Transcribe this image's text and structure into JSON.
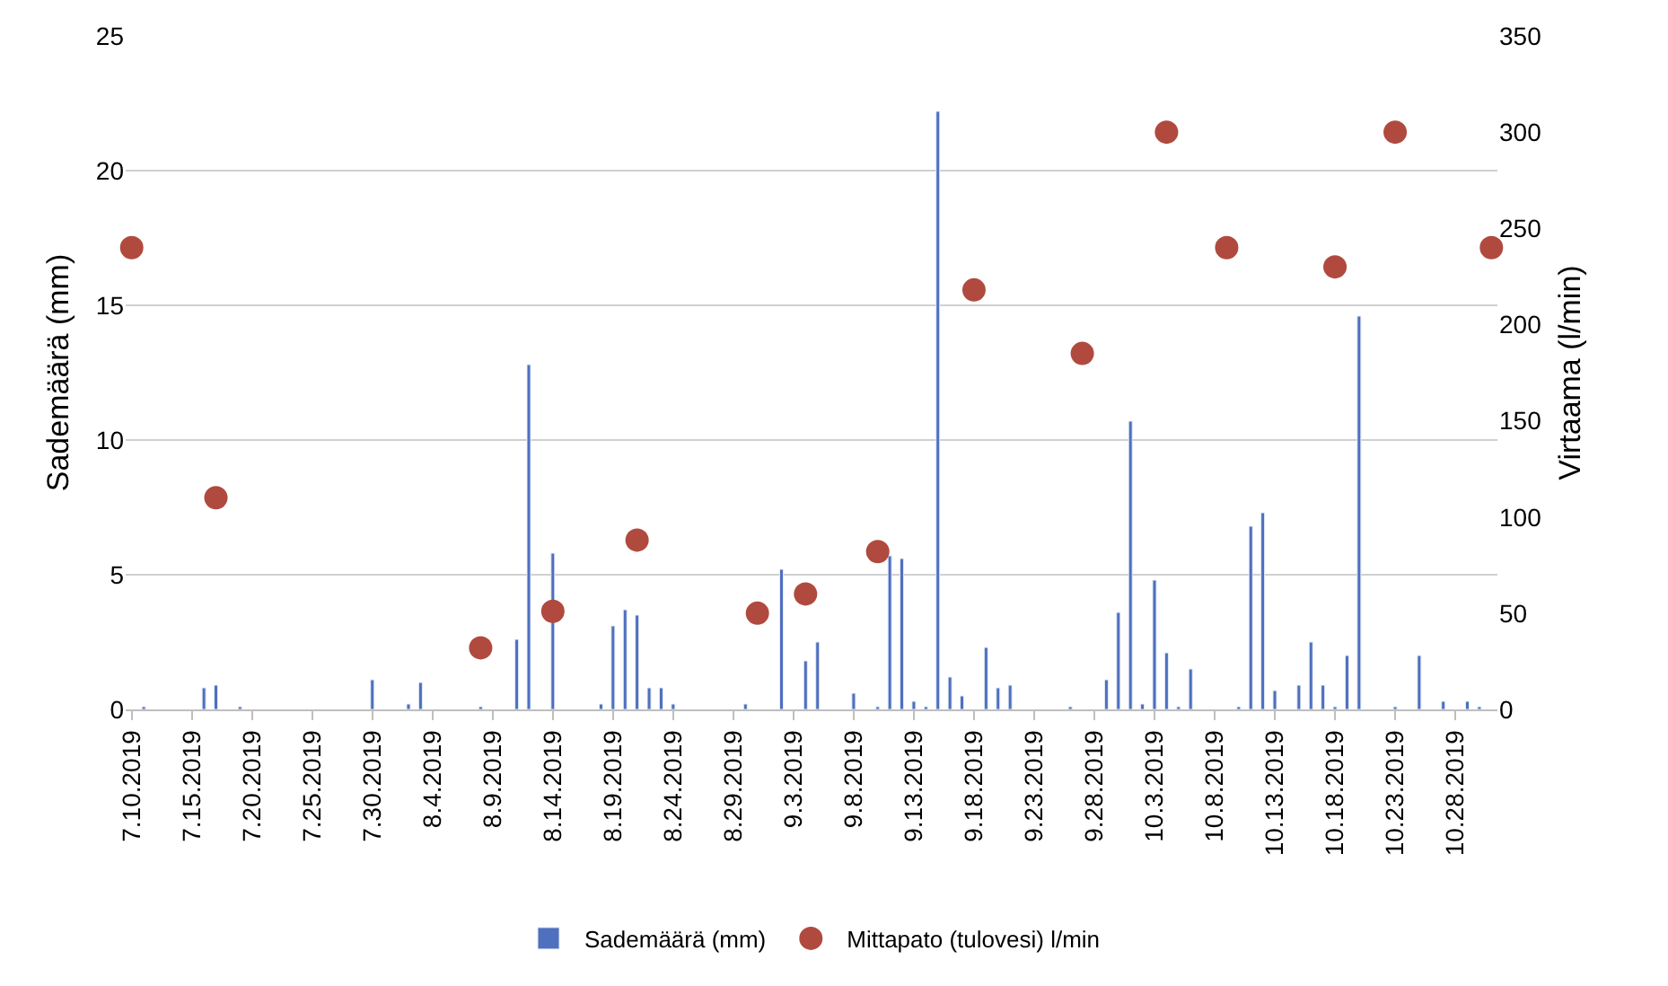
{
  "chart_data": {
    "type": "bar",
    "series": [
      {
        "name": "Sademäärä (mm)",
        "color": "#4f6fbf",
        "x": [
          "2019-07-11",
          "2019-07-16",
          "2019-07-17",
          "2019-07-19",
          "2019-07-30",
          "2019-08-02",
          "2019-08-03",
          "2019-08-08",
          "2019-08-11",
          "2019-08-12",
          "2019-08-14",
          "2019-08-18",
          "2019-08-19",
          "2019-08-20",
          "2019-08-21",
          "2019-08-22",
          "2019-08-23",
          "2019-08-24",
          "2019-08-30",
          "2019-09-02",
          "2019-09-04",
          "2019-09-05",
          "2019-09-08",
          "2019-09-10",
          "2019-09-11",
          "2019-09-12",
          "2019-09-13",
          "2019-09-14",
          "2019-09-15",
          "2019-09-16",
          "2019-09-17",
          "2019-09-19",
          "2019-09-20",
          "2019-09-21",
          "2019-09-26",
          "2019-09-29",
          "2019-09-30",
          "2019-10-01",
          "2019-10-02",
          "2019-10-03",
          "2019-10-04",
          "2019-10-05",
          "2019-10-06",
          "2019-10-10",
          "2019-10-11",
          "2019-10-12",
          "2019-10-13",
          "2019-10-15",
          "2019-10-16",
          "2019-10-17",
          "2019-10-18",
          "2019-10-19",
          "2019-10-20",
          "2019-10-23",
          "2019-10-25",
          "2019-10-27",
          "2019-10-29",
          "2019-10-30"
        ],
        "values": [
          0.1,
          0.8,
          0.9,
          0.1,
          1.1,
          0.2,
          1.0,
          0.1,
          2.6,
          12.8,
          5.8,
          0.2,
          3.1,
          3.7,
          3.5,
          0.8,
          0.8,
          0.2,
          0.2,
          5.2,
          1.8,
          2.5,
          0.6,
          0.1,
          5.7,
          5.6,
          0.3,
          0.1,
          22.2,
          1.2,
          0.5,
          2.3,
          0.8,
          0.9,
          0.1,
          1.1,
          3.6,
          10.7,
          0.2,
          4.8,
          2.1,
          0.1,
          1.5,
          0.1,
          6.8,
          7.3,
          0.7,
          0.9,
          2.5,
          0.9,
          0.1,
          2.0,
          14.6,
          0.1,
          2.0,
          0.3,
          0.3,
          0.1
        ]
      },
      {
        "name": "Mittapato (tulovesi) l/min",
        "type": "scatter",
        "axis": "y2",
        "color": "#b04a3f",
        "marker": "circle",
        "x": [
          "2019-07-10",
          "2019-07-17",
          "2019-08-08",
          "2019-08-14",
          "2019-08-21",
          "2019-08-31",
          "2019-09-04",
          "2019-09-10",
          "2019-09-18",
          "2019-09-27",
          "2019-10-04",
          "2019-10-09",
          "2019-10-18",
          "2019-10-23",
          "2019-10-31"
        ],
        "values": [
          240,
          110,
          32,
          51,
          88,
          50,
          60,
          82,
          218,
          185,
          300,
          240,
          230,
          300,
          240
        ]
      }
    ],
    "xlim": [
      "2019-07-09T12:00",
      "2019-10-31T12:00"
    ],
    "xticks": [
      {
        "value": "2019-07-10",
        "label": "7.10.2019"
      },
      {
        "value": "2019-07-15",
        "label": "7.15.2019"
      },
      {
        "value": "2019-07-20",
        "label": "7.20.2019"
      },
      {
        "value": "2019-07-25",
        "label": "7.25.2019"
      },
      {
        "value": "2019-07-30",
        "label": "7.30.2019"
      },
      {
        "value": "2019-08-04",
        "label": "8.4.2019"
      },
      {
        "value": "2019-08-09",
        "label": "8.9.2019"
      },
      {
        "value": "2019-08-14",
        "label": "8.14.2019"
      },
      {
        "value": "2019-08-19",
        "label": "8.19.2019"
      },
      {
        "value": "2019-08-24",
        "label": "8.24.2019"
      },
      {
        "value": "2019-08-29",
        "label": "8.29.2019"
      },
      {
        "value": "2019-09-03",
        "label": "9.3.2019"
      },
      {
        "value": "2019-09-08",
        "label": "9.8.2019"
      },
      {
        "value": "2019-09-13",
        "label": "9.13.2019"
      },
      {
        "value": "2019-09-18",
        "label": "9.18.2019"
      },
      {
        "value": "2019-09-23",
        "label": "9.23.2019"
      },
      {
        "value": "2019-09-28",
        "label": "9.28.2019"
      },
      {
        "value": "2019-10-03",
        "label": "10.3.2019"
      },
      {
        "value": "2019-10-08",
        "label": "10.8.2019"
      },
      {
        "value": "2019-10-13",
        "label": "10.13.2019"
      },
      {
        "value": "2019-10-18",
        "label": "10.18.2019"
      },
      {
        "value": "2019-10-23",
        "label": "10.23.2019"
      },
      {
        "value": "2019-10-28",
        "label": "10.28.2019"
      }
    ],
    "ylabel": "Sademäärä (mm)",
    "y2label": "Virtaama (l/min)",
    "ylim": [
      0,
      25
    ],
    "yticks": [
      0,
      5,
      10,
      15,
      20,
      25
    ],
    "y2lim": [
      0,
      350
    ],
    "y2ticks": [
      0,
      50,
      100,
      150,
      200,
      250,
      300,
      350
    ],
    "grid": "y",
    "legend": "bottom"
  }
}
